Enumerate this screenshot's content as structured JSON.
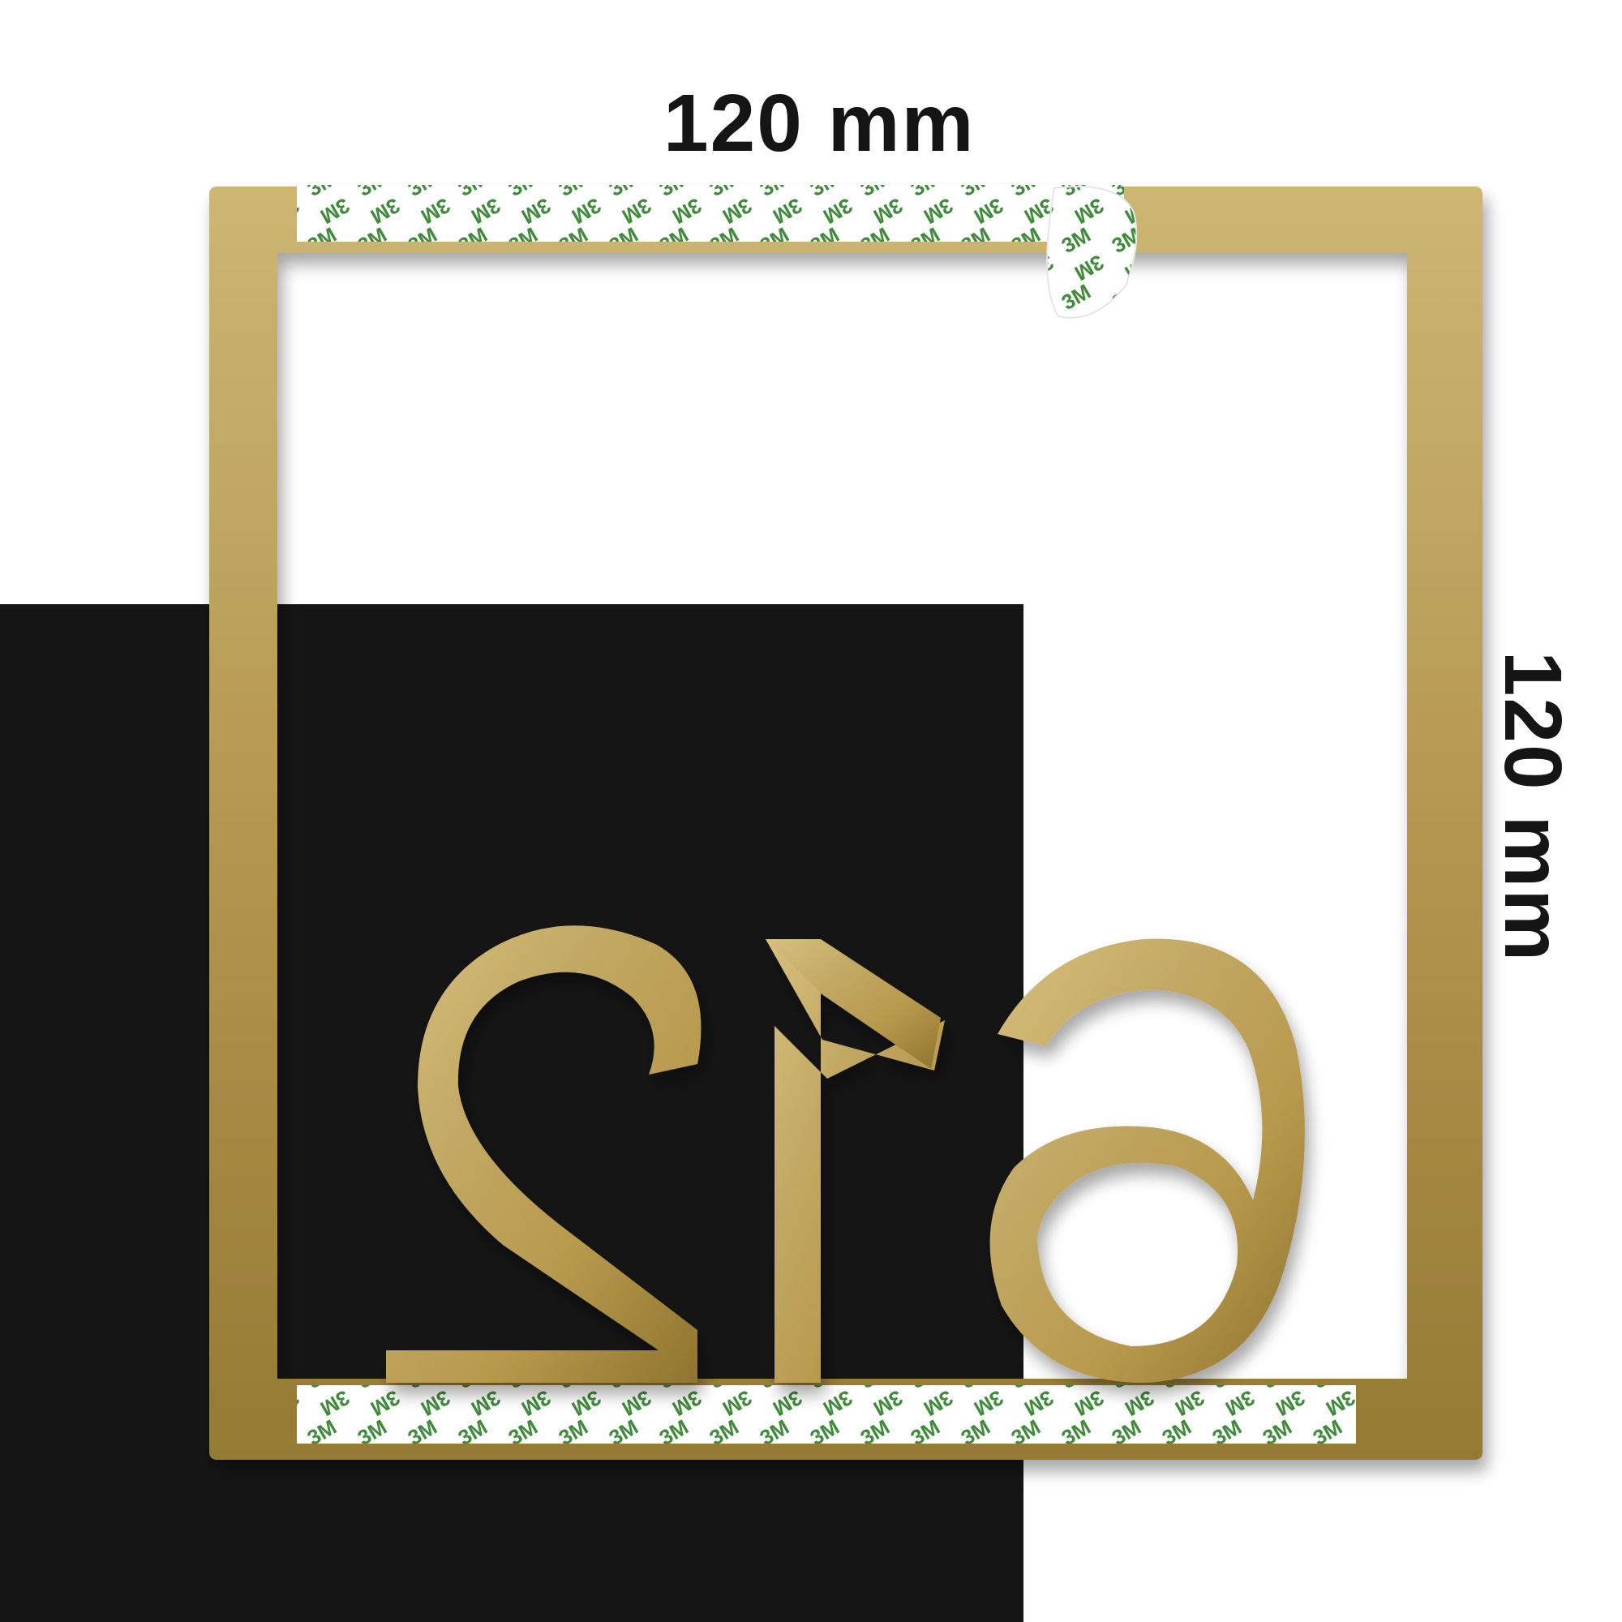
{
  "dimensions": {
    "width_label": "120 mm",
    "height_label": "120 mm"
  },
  "plate": {
    "digits": "612",
    "digits_shown_mirrored": true,
    "finish_color": "#b89a4e",
    "finish_highlight": "#d6c07e",
    "finish_shadow": "#8f742e"
  },
  "adhesive_tape": {
    "print_text": "3M",
    "print_color": "#3e8c3a",
    "backing_color": "#ffffff"
  },
  "background": {
    "left_panel_color": "#151515",
    "right_panel_color": "#ffffff"
  }
}
